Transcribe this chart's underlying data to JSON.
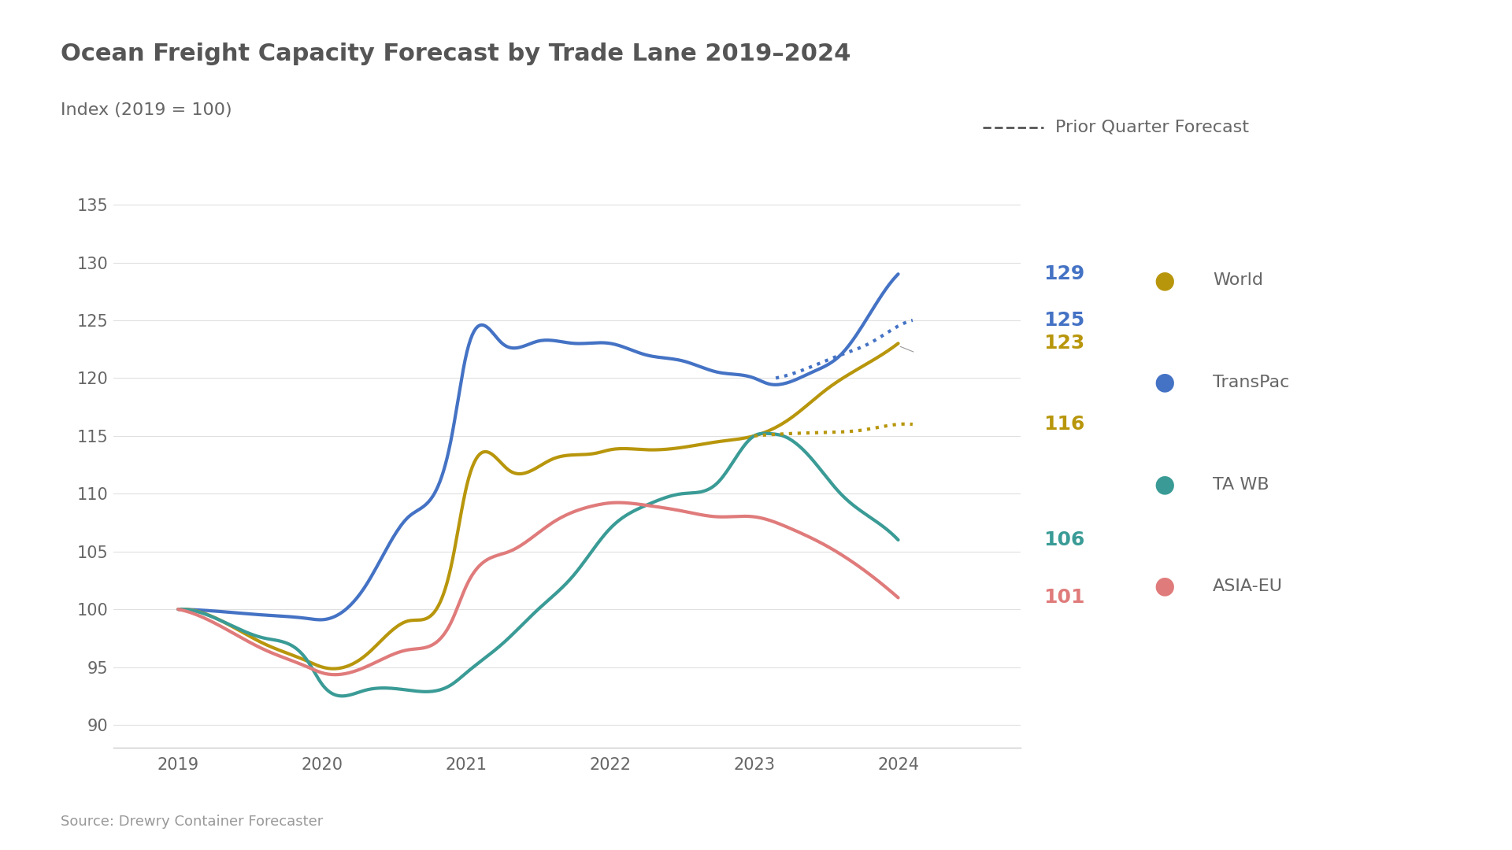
{
  "title": "Ocean Freight Capacity Forecast by Trade Lane 2019–2024",
  "subtitle": "Index (2019 = 100)",
  "source": "Source: Drewry Container Forecaster",
  "legend_dashed": "Prior Quarter Forecast",
  "ylim": [
    88,
    138
  ],
  "yticks": [
    90,
    95,
    100,
    105,
    110,
    115,
    120,
    125,
    130,
    135
  ],
  "xlim": [
    2018.55,
    2024.85
  ],
  "xticks": [
    2019,
    2020,
    2021,
    2022,
    2023,
    2024
  ],
  "colors": {
    "transpac": "#4472C4",
    "world": "#B8960C",
    "tawb": "#3A9B96",
    "asiaeu": "#E07B7B",
    "dashed_gray": "#888888"
  },
  "transpac_x": [
    2019.0,
    2019.3,
    2019.6,
    2019.9,
    2020.0,
    2020.3,
    2020.6,
    2020.9,
    2021.0,
    2021.25,
    2021.5,
    2021.75,
    2022.0,
    2022.25,
    2022.5,
    2022.75,
    2023.0,
    2023.1,
    2023.2,
    2023.4,
    2023.6,
    2023.8,
    2024.0
  ],
  "transpac_y": [
    100,
    99.8,
    99.5,
    99.2,
    99.1,
    102,
    108,
    115,
    122,
    123,
    123.2,
    123,
    123,
    122,
    121.5,
    120.5,
    120,
    119.5,
    119.5,
    120.5,
    122,
    125.5,
    129
  ],
  "world_x": [
    2019.0,
    2019.3,
    2019.6,
    2019.9,
    2020.0,
    2020.3,
    2020.6,
    2020.9,
    2021.0,
    2021.3,
    2021.6,
    2021.9,
    2022.0,
    2022.25,
    2022.5,
    2022.75,
    2023.0,
    2023.25,
    2023.5,
    2023.75,
    2024.0
  ],
  "world_y": [
    100,
    99,
    97,
    95.5,
    95,
    96,
    99,
    104,
    110.5,
    112,
    113,
    113.5,
    113.8,
    113.8,
    114,
    114.5,
    115,
    116.5,
    119,
    121,
    123
  ],
  "tawb_x": [
    2019.0,
    2019.3,
    2019.6,
    2019.9,
    2020.0,
    2020.3,
    2020.6,
    2020.9,
    2021.0,
    2021.25,
    2021.5,
    2021.75,
    2022.0,
    2022.25,
    2022.5,
    2022.75,
    2023.0,
    2023.1,
    2023.2,
    2023.4,
    2023.6,
    2023.8,
    2024.0
  ],
  "tawb_y": [
    100,
    99,
    97.5,
    95.5,
    93.5,
    93,
    93,
    93.5,
    94.5,
    97,
    100,
    103,
    107,
    109,
    110,
    111,
    115,
    115.2,
    115,
    113,
    110,
    108,
    106
  ],
  "asiaeu_x": [
    2019.0,
    2019.3,
    2019.6,
    2019.9,
    2020.0,
    2020.3,
    2020.6,
    2020.9,
    2021.0,
    2021.3,
    2021.6,
    2021.9,
    2022.0,
    2022.25,
    2022.5,
    2022.75,
    2023.0,
    2023.25,
    2023.5,
    2023.75,
    2024.0
  ],
  "asiaeu_y": [
    100,
    98.5,
    96.5,
    95,
    94.5,
    95,
    96.5,
    99,
    102,
    105,
    107.5,
    109,
    109.2,
    109,
    108.5,
    108,
    108,
    107,
    105.5,
    103.5,
    101
  ],
  "transpac_dashed_x": [
    2023.15,
    2023.4,
    2023.6,
    2023.8,
    2024.0,
    2024.1
  ],
  "transpac_dashed_y": [
    120.0,
    121.0,
    122.0,
    123.0,
    124.5,
    125
  ],
  "world_dashed_x": [
    2023.0,
    2023.25,
    2023.5,
    2023.75,
    2024.0,
    2024.1
  ],
  "world_dashed_y": [
    115.0,
    115.2,
    115.3,
    115.5,
    116.0,
    116
  ],
  "end_labels": [
    {
      "y": 129,
      "text": "129",
      "color": "#4472C4"
    },
    {
      "y": 125,
      "text": "125",
      "color": "#4472C4"
    },
    {
      "y": 123,
      "text": "123",
      "color": "#B8960C"
    },
    {
      "y": 116,
      "text": "116",
      "color": "#B8960C"
    },
    {
      "y": 106,
      "text": "106",
      "color": "#3A9B96"
    },
    {
      "y": 101,
      "text": "101",
      "color": "#E07B7B"
    }
  ],
  "legend_entries": [
    {
      "label": "World",
      "color": "#B8960C"
    },
    {
      "label": "TransPac",
      "color": "#4472C4"
    },
    {
      "label": "TA WB",
      "color": "#3A9B96"
    },
    {
      "label": "ASIA-EU",
      "color": "#E07B7B"
    }
  ],
  "title_color": "#555555",
  "title_fontsize": 22,
  "subtitle_fontsize": 16,
  "tick_fontsize": 15,
  "label_fontsize": 18,
  "legend_fontsize": 16,
  "source_fontsize": 13,
  "line_width": 3.0,
  "background_color": "#FFFFFF"
}
